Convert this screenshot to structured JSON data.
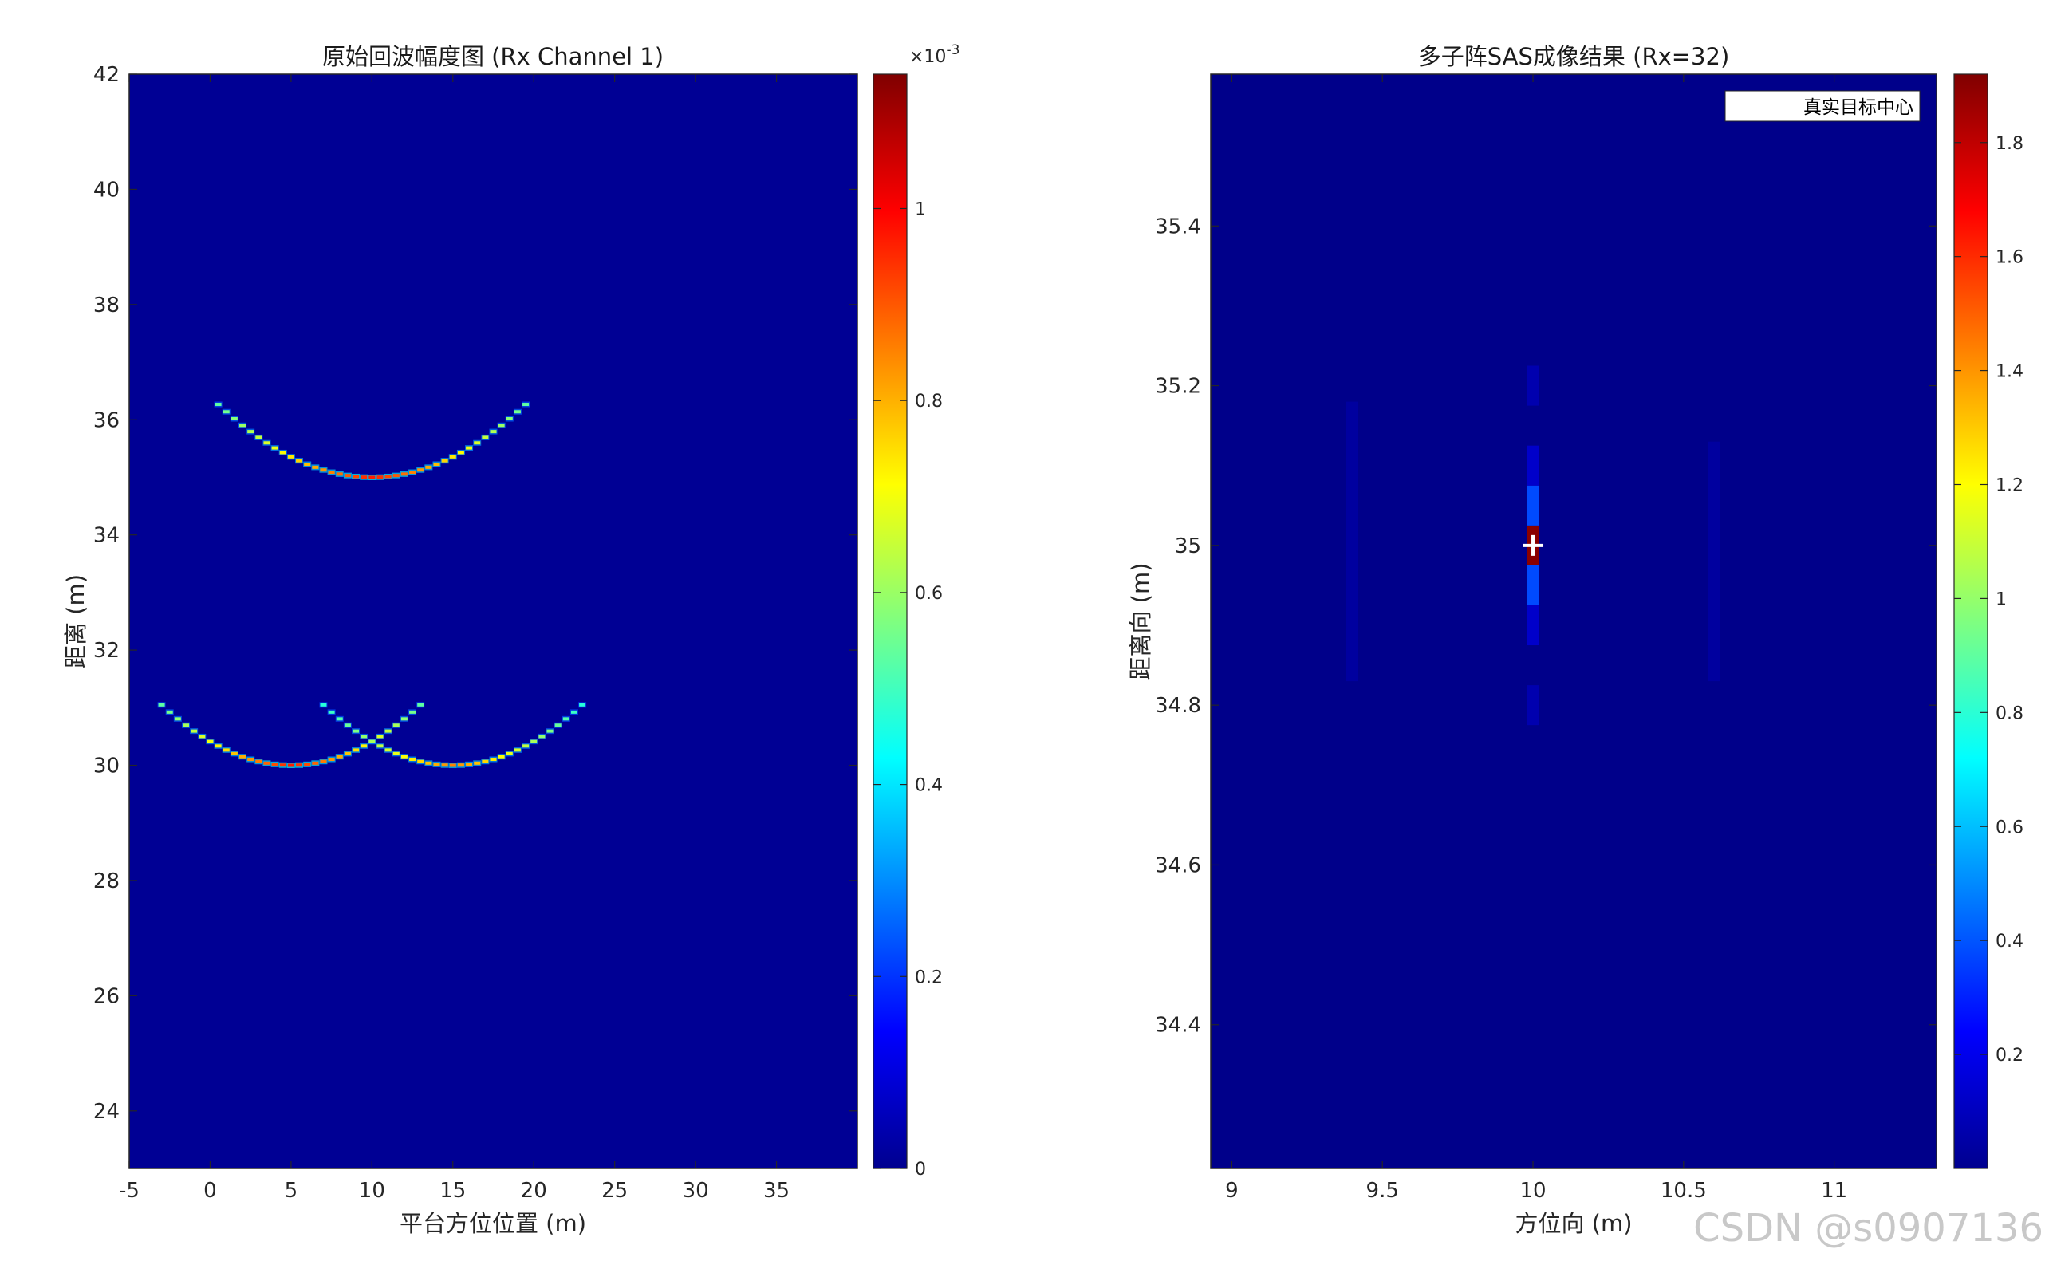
{
  "chart_data": [
    {
      "type": "heatmap",
      "title": "原始回波幅度图 (Rx Channel 1)",
      "xlabel": "平台方位位置 (m)",
      "ylabel": "距离 (m)",
      "xlim": [
        -5,
        40
      ],
      "ylim": [
        23,
        42
      ],
      "xticks": [
        -5,
        0,
        5,
        10,
        15,
        20,
        25,
        30,
        35
      ],
      "yticks": [
        24,
        26,
        28,
        30,
        32,
        34,
        36,
        38,
        40,
        42
      ],
      "background_value": 0.02,
      "colorbar": {
        "range": [
          0,
          0.00114
        ],
        "exponent_label": "×10",
        "exponent_power": "-3",
        "ticks": [
          0,
          0.2,
          0.4,
          0.6,
          0.8,
          1
        ],
        "colormap": "jet"
      },
      "curves": [
        {
          "target_x": 10,
          "target_range": 35,
          "x_range": [
            0.5,
            19.5
          ],
          "peak": 0.85
        },
        {
          "target_x": 5,
          "target_range": 30,
          "x_range": [
            -3,
            13
          ],
          "peak": 0.85
        },
        {
          "target_x": 15,
          "target_range": 30,
          "x_range": [
            7,
            23
          ],
          "peak": 0.75
        }
      ]
    },
    {
      "type": "heatmap",
      "title": "多子阵SAS成像结果 (Rx=32)",
      "xlabel": "方位向 (m)",
      "ylabel": "距离向 (m)",
      "xlim": [
        8.93,
        11.34
      ],
      "ylim": [
        34.22,
        35.59
      ],
      "xticks": [
        9,
        9.5,
        10,
        10.5,
        11
      ],
      "yticks": [
        34.4,
        34.6,
        34.8,
        35,
        35.2,
        35.4
      ],
      "background_value": 0.02,
      "colorbar": {
        "range": [
          0,
          1.92
        ],
        "ticks": [
          0.2,
          0.4,
          0.6,
          0.8,
          1,
          1.2,
          1.4,
          1.6,
          1.8
        ],
        "colormap": "jet"
      },
      "cells": [
        {
          "x": [
            9.98,
            10.02
          ],
          "y": [
            34.975,
            35.025
          ],
          "v": 1.9
        },
        {
          "x": [
            9.98,
            10.02
          ],
          "y": [
            35.025,
            35.075
          ],
          "v": 0.38
        },
        {
          "x": [
            9.98,
            10.02
          ],
          "y": [
            34.925,
            34.975
          ],
          "v": 0.38
        },
        {
          "x": [
            9.98,
            10.02
          ],
          "y": [
            35.075,
            35.125
          ],
          "v": 0.14
        },
        {
          "x": [
            9.98,
            10.02
          ],
          "y": [
            34.875,
            34.925
          ],
          "v": 0.14
        },
        {
          "x": [
            9.98,
            10.02
          ],
          "y": [
            35.175,
            35.225
          ],
          "v": 0.09
        },
        {
          "x": [
            9.98,
            10.02
          ],
          "y": [
            34.775,
            34.825
          ],
          "v": 0.09
        },
        {
          "x": [
            9.38,
            9.42
          ],
          "y": [
            34.83,
            35.18
          ],
          "v": 0.06
        },
        {
          "x": [
            10.58,
            10.62
          ],
          "y": [
            34.83,
            35.13
          ],
          "v": 0.06
        }
      ],
      "marker": {
        "x": 10,
        "y": 35,
        "symbol": "+",
        "color": "#ffffff"
      },
      "legend": {
        "entries": [
          "真实目标中心"
        ],
        "location": "top-right"
      }
    }
  ],
  "watermark": "CSDN @s0907136"
}
